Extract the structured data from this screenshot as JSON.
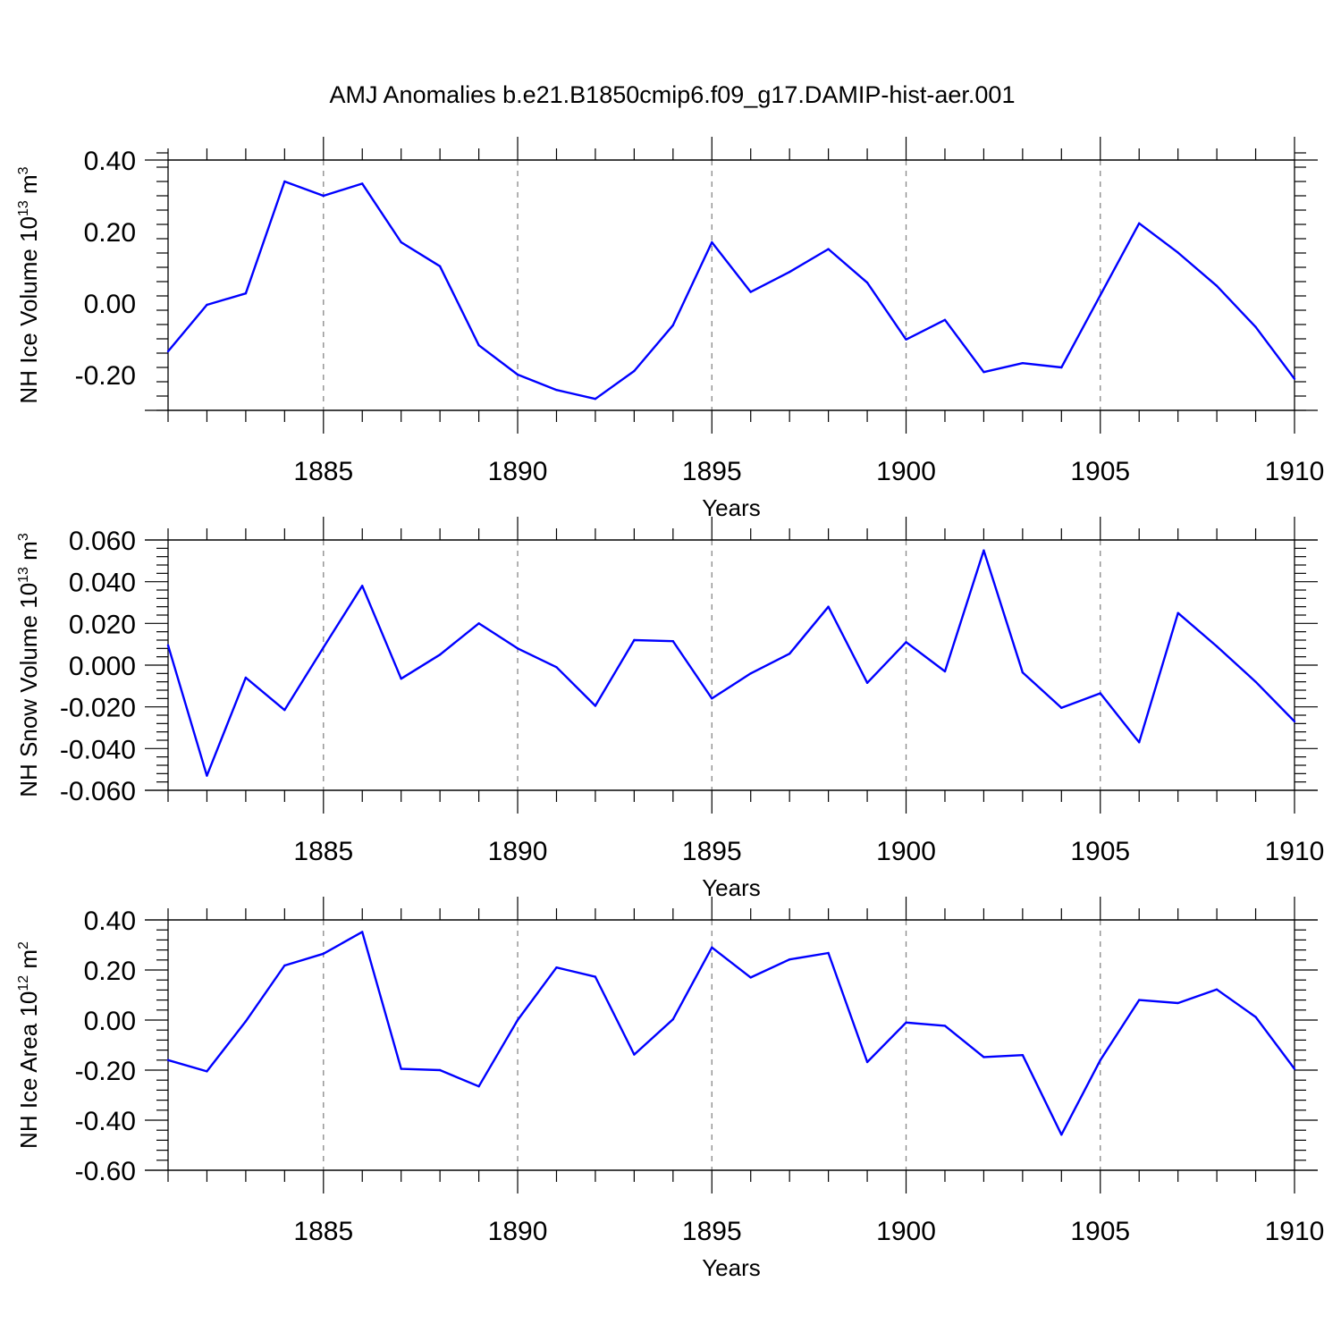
{
  "title": "AMJ Anomalies b.e21.B1850cmip6.f09_g17.DAMIP-hist-aer.001",
  "line_color": "#0000ff",
  "chart_data": [
    {
      "type": "line",
      "xlabel": "Years",
      "ylabel": "NH Ice Volume 10",
      "ylabel_exp": "13",
      "ylabel_unit": "m",
      "ylabel_unit_exp": "3",
      "xlim": [
        1881,
        1910
      ],
      "ylim": [
        -0.3,
        0.4
      ],
      "xticks": [
        1885,
        1890,
        1895,
        1900,
        1905,
        1910
      ],
      "yticks": [
        0.4,
        0.2,
        0.0,
        -0.2
      ],
      "ytick_labels": [
        "0.40",
        "0.20",
        "0.00",
        "-0.20"
      ],
      "x": [
        1881,
        1882,
        1883,
        1884,
        1885,
        1886,
        1887,
        1888,
        1889,
        1890,
        1891,
        1892,
        1893,
        1894,
        1895,
        1896,
        1897,
        1898,
        1899,
        1900,
        1901,
        1902,
        1903,
        1904,
        1905,
        1906,
        1907,
        1908,
        1909,
        1910
      ],
      "series": [
        {
          "values": [
            -0.135,
            -0.005,
            0.027,
            0.34,
            0.3,
            0.334,
            0.17,
            0.103,
            -0.118,
            -0.2,
            -0.243,
            -0.268,
            -0.19,
            -0.062,
            0.17,
            0.031,
            0.087,
            0.151,
            0.057,
            -0.102,
            -0.047,
            -0.193,
            -0.168,
            -0.18,
            0.022,
            0.223,
            0.141,
            0.048,
            -0.067,
            -0.212
          ]
        }
      ]
    },
    {
      "type": "line",
      "xlabel": "Years",
      "ylabel": "NH Snow Volume 10",
      "ylabel_exp": "13",
      "ylabel_unit": "m",
      "ylabel_unit_exp": "3",
      "xlim": [
        1881,
        1910
      ],
      "ylim": [
        -0.06,
        0.06
      ],
      "xticks": [
        1885,
        1890,
        1895,
        1900,
        1905,
        1910
      ],
      "yticks": [
        0.06,
        0.04,
        0.02,
        0.0,
        -0.02,
        -0.04,
        -0.06
      ],
      "ytick_labels": [
        "0.060",
        "0.040",
        "0.020",
        "0.000",
        "-0.020",
        "-0.040",
        "-0.060"
      ],
      "x": [
        1881,
        1882,
        1883,
        1884,
        1885,
        1886,
        1887,
        1888,
        1889,
        1890,
        1891,
        1892,
        1893,
        1894,
        1895,
        1896,
        1897,
        1898,
        1899,
        1900,
        1901,
        1902,
        1903,
        1904,
        1905,
        1906,
        1907,
        1908,
        1909,
        1910
      ],
      "series": [
        {
          "values": [
            0.0095,
            -0.053,
            -0.006,
            -0.0215,
            0.0085,
            0.038,
            -0.0065,
            0.005,
            0.02,
            0.008,
            -0.001,
            -0.0195,
            0.012,
            0.0115,
            -0.016,
            -0.004,
            0.0055,
            0.028,
            -0.0085,
            0.011,
            -0.003,
            0.055,
            -0.0035,
            -0.0205,
            -0.0135,
            -0.037,
            0.025,
            0.009,
            -0.008,
            -0.027
          ]
        }
      ]
    },
    {
      "type": "line",
      "xlabel": "Years",
      "ylabel": "NH Ice Area 10",
      "ylabel_exp": "12",
      "ylabel_unit": "m",
      "ylabel_unit_exp": "2",
      "xlim": [
        1881,
        1910
      ],
      "ylim": [
        -0.6,
        0.4
      ],
      "xticks": [
        1885,
        1890,
        1895,
        1900,
        1905,
        1910
      ],
      "yticks": [
        0.4,
        0.2,
        0.0,
        -0.2,
        -0.4,
        -0.6
      ],
      "ytick_labels": [
        "0.40",
        "0.20",
        "0.00",
        "-0.20",
        "-0.40",
        "-0.60"
      ],
      "x": [
        1881,
        1882,
        1883,
        1884,
        1885,
        1886,
        1887,
        1888,
        1889,
        1890,
        1891,
        1892,
        1893,
        1894,
        1895,
        1896,
        1897,
        1898,
        1899,
        1900,
        1901,
        1902,
        1903,
        1904,
        1905,
        1906,
        1907,
        1908,
        1909,
        1910
      ],
      "series": [
        {
          "values": [
            -0.16,
            -0.205,
            -0.005,
            0.218,
            0.265,
            0.352,
            -0.195,
            -0.2,
            -0.265,
            0.0,
            0.21,
            0.173,
            -0.138,
            0.003,
            0.29,
            0.17,
            0.242,
            0.268,
            -0.168,
            -0.01,
            -0.023,
            -0.148,
            -0.14,
            -0.458,
            -0.16,
            0.08,
            0.068,
            0.122,
            0.012,
            -0.195
          ]
        }
      ]
    }
  ]
}
